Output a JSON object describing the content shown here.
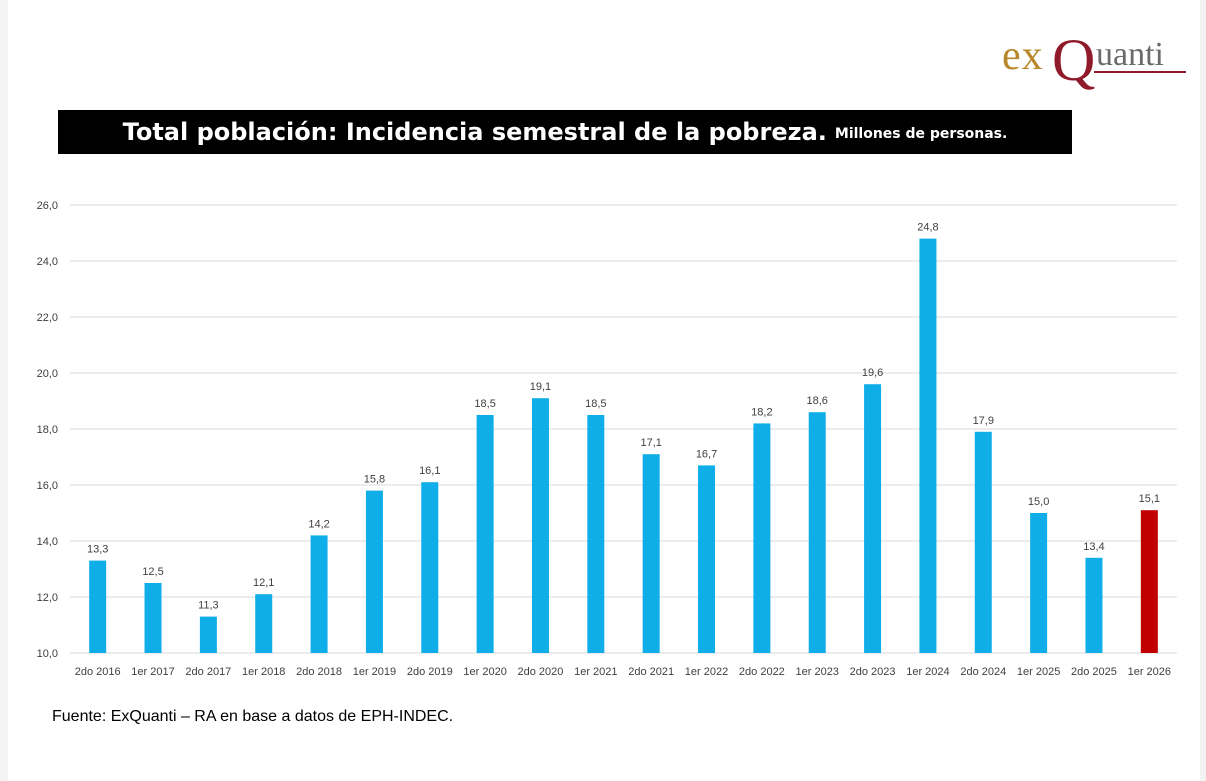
{
  "logo": {
    "ex": "ex",
    "q": "Q",
    "anti": "uanti"
  },
  "header": {
    "title": "Total población: Incidencia semestral de la pobreza.",
    "subtitle": "Millones de personas."
  },
  "source": "Fuente: ExQuanti – RA en base a datos de EPH-INDEC.",
  "colors": {
    "bar": "#10aee8",
    "highlight": "#c00000",
    "grid": "#d9d9d9",
    "text": "#404040"
  },
  "chart_data": {
    "type": "bar",
    "title": "",
    "xlabel": "",
    "ylabel": "",
    "categories": [
      "2do 2016",
      "1er 2017",
      "2do 2017",
      "1er 2018",
      "2do 2018",
      "1er 2019",
      "2do 2019",
      "1er 2020",
      "2do 2020",
      "1er 2021",
      "2do 2021",
      "1er 2022",
      "2do 2022",
      "1er 2023",
      "2do 2023",
      "1er 2024",
      "2do 2024",
      "1er 2025",
      "2do 2025",
      "1er 2026"
    ],
    "values": [
      13.3,
      12.5,
      11.3,
      12.1,
      14.2,
      15.8,
      16.1,
      18.5,
      19.1,
      18.5,
      17.1,
      16.7,
      18.2,
      18.6,
      19.6,
      24.8,
      17.9,
      15.0,
      13.4,
      15.1
    ],
    "value_labels": [
      "13,3",
      "12,5",
      "11,3",
      "12,1",
      "14,2",
      "15,8",
      "16,1",
      "18,5",
      "19,1",
      "18,5",
      "17,1",
      "16,7",
      "18,2",
      "18,6",
      "19,6",
      "24,8",
      "17,9",
      "15,0",
      "13,4",
      "15,1"
    ],
    "ylim": [
      10,
      26
    ],
    "yticks": [
      10,
      12,
      14,
      16,
      18,
      20,
      22,
      24,
      26
    ],
    "ytick_labels": [
      "10,0",
      "12,0",
      "14,0",
      "16,0",
      "18,0",
      "20,0",
      "22,0",
      "24,0",
      "26,0"
    ],
    "highlight_index": 19,
    "grid": true,
    "legend": "none"
  }
}
